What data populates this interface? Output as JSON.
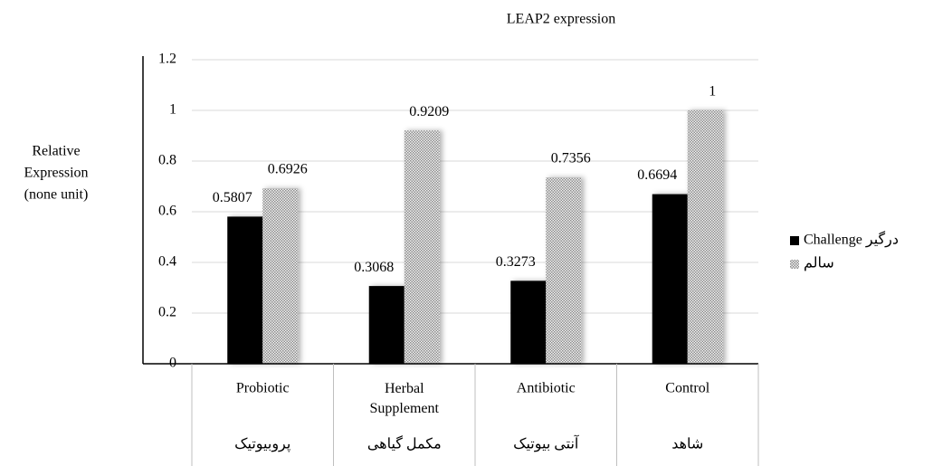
{
  "chart_data": {
    "type": "bar",
    "title": "LEAP2 expression",
    "ylabel": [
      "Relative",
      "Expression",
      "(none unit)"
    ],
    "categories": [
      "Probiotic",
      "Herbal Supplement",
      "Antibiotic",
      "Control"
    ],
    "categories_fa": [
      "پروبیوتیک",
      "مکمل گیاهی",
      "آنتی بیوتیک",
      "شاهد"
    ],
    "series": [
      {
        "name": "Challenge درگیر",
        "color": "#000000",
        "values": [
          0.5807,
          0.3068,
          0.3273,
          0.6694
        ]
      },
      {
        "name": "سالم",
        "color": "#bfbfbf",
        "pattern": "dots",
        "values": [
          0.6926,
          0.9209,
          0.7356,
          1
        ]
      }
    ],
    "ylim": [
      0,
      1.2
    ],
    "yticks": [
      0,
      0.2,
      0.4,
      0.6,
      0.8,
      1,
      1.2
    ],
    "grid": true,
    "legend": "right"
  }
}
